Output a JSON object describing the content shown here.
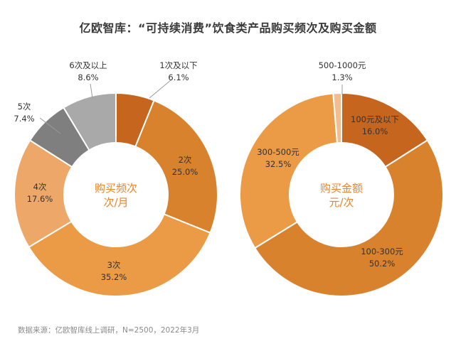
{
  "title": "亿欧智库：“可持续消费”饮食类产品购买频次及购买金额",
  "source": "数据来源：亿欧智库线上调研，N=2500，2022年3月",
  "chart_data": [
    {
      "type": "donut",
      "center_label": [
        "购买频次",
        "次/月"
      ],
      "slices": [
        {
          "label": "1次及以下",
          "value": 6.1,
          "value_text": "6.1%",
          "color": "#C5651E"
        },
        {
          "label": "2次",
          "value": 25.0,
          "value_text": "25.0%",
          "color": "#D9822D"
        },
        {
          "label": "3次",
          "value": 35.2,
          "value_text": "35.2%",
          "color": "#EB9A45"
        },
        {
          "label": "4次",
          "value": 17.6,
          "value_text": "17.6%",
          "color": "#EDA869"
        },
        {
          "label": "5次",
          "value": 7.4,
          "value_text": "7.4%",
          "color": "#7F7F7F"
        },
        {
          "label": "6次及以上",
          "value": 8.6,
          "value_text": "8.6%",
          "color": "#A9A9A9"
        }
      ]
    },
    {
      "type": "donut",
      "center_label": [
        "购买金额",
        "元/次"
      ],
      "slices": [
        {
          "label": "100元及以下",
          "value": 16.0,
          "value_text": "16.0%",
          "color": "#C5651E"
        },
        {
          "label": "100-300元",
          "value": 50.2,
          "value_text": "50.2%",
          "color": "#D9822D"
        },
        {
          "label": "300-500元",
          "value": 32.5,
          "value_text": "32.5%",
          "color": "#EB9A45"
        },
        {
          "label": "500-1000元",
          "value": 1.3,
          "value_text": "1.3%",
          "color": "#F2BE8F"
        }
      ]
    }
  ]
}
